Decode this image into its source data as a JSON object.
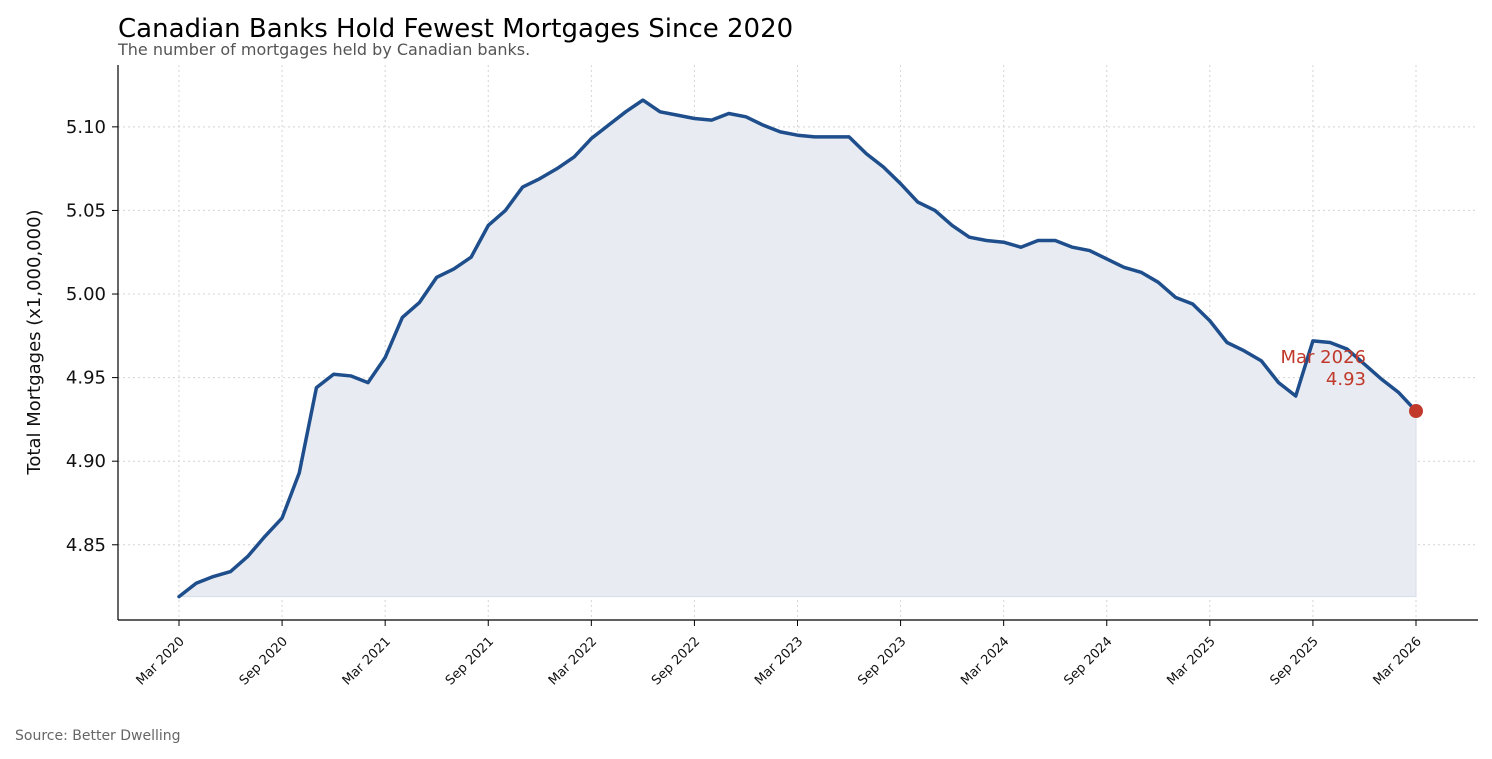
{
  "chart_data": {
    "type": "area",
    "title": "Canadian Banks Hold Fewest Mortgages Since 2020",
    "subtitle": "The number of mortgages held by Canadian banks.",
    "ylabel": "Total Mortgages (x1,000,000)",
    "xlabel": "",
    "source": "Source: Better Dwelling",
    "ylim": [
      4.805,
      5.137
    ],
    "yticks": [
      4.85,
      4.9,
      4.95,
      5.0,
      5.05,
      5.1
    ],
    "ytick_labels": [
      "4.85",
      "4.90",
      "4.95",
      "5.00",
      "5.05",
      "5.10"
    ],
    "xtick_labels": [
      "Mar 2020",
      "Sep 2020",
      "Mar 2021",
      "Sep 2021",
      "Mar 2022",
      "Sep 2022",
      "Mar 2023",
      "Sep 2023",
      "Mar 2024",
      "Sep 2024",
      "Mar 2025",
      "Sep 2025",
      "Mar 2026"
    ],
    "grid": true,
    "x": [
      "2020-03",
      "2020-04",
      "2020-05",
      "2020-06",
      "2020-07",
      "2020-08",
      "2020-09",
      "2020-10",
      "2020-11",
      "2020-12",
      "2021-01",
      "2021-02",
      "2021-03",
      "2021-04",
      "2021-05",
      "2021-06",
      "2021-07",
      "2021-08",
      "2021-09",
      "2021-10",
      "2021-11",
      "2021-12",
      "2022-01",
      "2022-02",
      "2022-03",
      "2022-04",
      "2022-05",
      "2022-06",
      "2022-07",
      "2022-08",
      "2022-09",
      "2022-10",
      "2022-11",
      "2022-12",
      "2023-01",
      "2023-02",
      "2023-03",
      "2023-04",
      "2023-05",
      "2023-06",
      "2023-07",
      "2023-08",
      "2023-09",
      "2023-10",
      "2023-11",
      "2023-12",
      "2024-01",
      "2024-02",
      "2024-03",
      "2024-04",
      "2024-05",
      "2024-06",
      "2024-07",
      "2024-08",
      "2024-09",
      "2024-10",
      "2024-11",
      "2024-12",
      "2025-01",
      "2025-02",
      "2025-03",
      "2025-04",
      "2025-05",
      "2025-06",
      "2025-07",
      "2025-08",
      "2025-09",
      "2025-10",
      "2025-11",
      "2025-12",
      "2026-01",
      "2026-02",
      "2026-03"
    ],
    "series": [
      {
        "values": [
          4.819,
          4.827,
          4.831,
          4.834,
          4.843,
          4.855,
          4.866,
          4.893,
          4.944,
          4.952,
          4.951,
          4.947,
          4.962,
          4.986,
          4.995,
          5.01,
          5.015,
          5.022,
          5.041,
          5.05,
          5.064,
          5.069,
          5.075,
          5.082,
          5.093,
          5.101,
          5.109,
          5.116,
          5.109,
          5.107,
          5.105,
          5.104,
          5.108,
          5.106,
          5.101,
          5.097,
          5.095,
          5.094,
          5.094,
          5.094,
          5.084,
          5.076,
          5.066,
          5.055,
          5.05,
          5.041,
          5.034,
          5.032,
          5.031,
          5.028,
          5.032,
          5.032,
          5.028,
          5.026,
          5.021,
          5.016,
          5.013,
          5.007,
          4.998,
          4.994,
          4.984,
          4.971,
          4.966,
          4.96,
          4.947,
          4.939,
          4.972,
          4.971,
          4.967,
          4.958,
          4.949,
          4.941,
          4.93
        ]
      }
    ],
    "line_color": "#1f4e8c",
    "fill_color": "#e8ecf2",
    "highlight_color": "#c0392b",
    "annotation": {
      "label": "Mar 2026",
      "value_label": "4.93",
      "x": "2026-03",
      "y": 4.93
    }
  }
}
